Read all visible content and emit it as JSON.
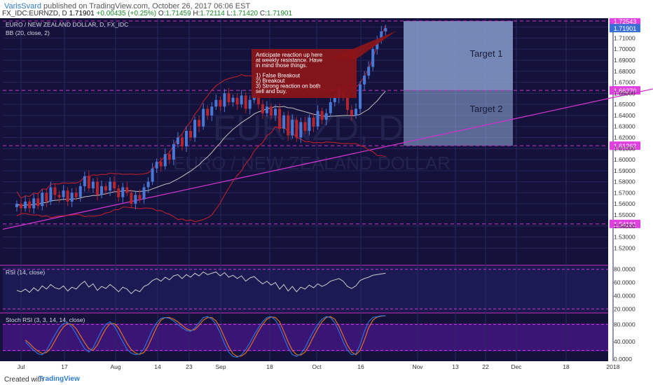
{
  "header": {
    "author": "VarisSvard",
    "published": "published on TradingView.com, October 26, 2017 06:06 EST",
    "symbol": "FX_IDC:EURNZD, D",
    "last": "1.71901",
    "change": "+0.00435 (+0.25%)",
    "open_label": "O:",
    "open": "1.71459",
    "high_label": "H:",
    "high": "1.72114",
    "low_label": "L:",
    "low": "1.71420",
    "close_label": "C:",
    "close": "1.71901"
  },
  "footer": {
    "created": "Created with",
    "brand": "TradingView"
  },
  "colors": {
    "background": "#14123a",
    "up": "#4a78d6",
    "down": "#b8242c",
    "bb": "#c8202a",
    "basis": "#bfbfbf",
    "trendline": "#cc33cc",
    "level": "#cc33cc",
    "rsi": "#cccccc",
    "stoch_k": "#2e6fd6",
    "stoch_d": "#e07020",
    "annotation": "#8c1519",
    "target": "#8fa8d8"
  },
  "chart_data": [
    {
      "type": "candlestick",
      "title": "EURO / NEW ZEALAND DOLLAR, D, FX_IDC",
      "watermark_symbol": "EURNZD, D",
      "watermark_name": "EURO / NEW ZEALAND DOLLAR",
      "indicator": "BB (20, close, 2)",
      "ylim": [
        1.505,
        1.728
      ],
      "yticks": [
        "1.52000",
        "1.53000",
        "1.54000",
        "1.55000",
        "1.56000",
        "1.57000",
        "1.58000",
        "1.59000",
        "1.60000",
        "1.61000",
        "1.62000",
        "1.63000",
        "1.64000",
        "1.65000",
        "1.66000",
        "1.67000",
        "1.68000",
        "1.69000",
        "1.70000",
        "1.71000",
        "1.72000"
      ],
      "xticks": [
        "Jul",
        "17",
        "Aug",
        "14",
        "23",
        "Sep",
        "18",
        "Oct",
        "16",
        "Nov",
        "13",
        "22",
        "Dec",
        "18",
        "2018"
      ],
      "levels": [
        {
          "label": "1.72543",
          "value": 1.72543
        },
        {
          "label": "1.66270",
          "value": 1.6627
        },
        {
          "label": "1.61262",
          "value": 1.61262
        },
        {
          "label": "1.54181",
          "value": 1.54181
        }
      ],
      "last_price": "1.71901",
      "candles_close": [
        1.56,
        1.556,
        1.562,
        1.556,
        1.565,
        1.558,
        1.57,
        1.562,
        1.575,
        1.568,
        1.566,
        1.572,
        1.562,
        1.57,
        1.566,
        1.576,
        1.585,
        1.574,
        1.58,
        1.568,
        1.576,
        1.572,
        1.58,
        1.574,
        1.566,
        1.575,
        1.57,
        1.56,
        1.568,
        1.564,
        1.575,
        1.58,
        1.592,
        1.598,
        1.594,
        1.605,
        1.6,
        1.614,
        1.62,
        1.612,
        1.626,
        1.62,
        1.636,
        1.63,
        1.646,
        1.64,
        1.648,
        1.654,
        1.648,
        1.66,
        1.652,
        1.656,
        1.65,
        1.658,
        1.646,
        1.654,
        1.658,
        1.65,
        1.642,
        1.648,
        1.64,
        1.646,
        1.628,
        1.64,
        1.622,
        1.636,
        1.62,
        1.634,
        1.626,
        1.638,
        1.63,
        1.644,
        1.636,
        1.642,
        1.652,
        1.656,
        1.662,
        1.656,
        1.645,
        1.64,
        1.646,
        1.668,
        1.676,
        1.684,
        1.7,
        1.708,
        1.716,
        1.719
      ],
      "annotation": "Anticipate reaction up here at weekly resistance. Have in mind those things.\n\n1) False Breakout\n2) Breakout\n3) Strong reaction on both sell and buy.",
      "targets": [
        "Target 1",
        "Target 2"
      ]
    },
    {
      "type": "line",
      "indicator": "RSI (14, close)",
      "ylim": [
        15,
        85
      ],
      "yticks": [
        "80.0000",
        "60.0000",
        "40.0000",
        "20.0000"
      ],
      "values": [
        48,
        46,
        50,
        45,
        52,
        47,
        55,
        50,
        57,
        52,
        50,
        55,
        47,
        53,
        50,
        57,
        62,
        53,
        58,
        48,
        54,
        51,
        57,
        52,
        46,
        53,
        50,
        43,
        49,
        46,
        54,
        57,
        63,
        66,
        62,
        68,
        64,
        70,
        72,
        66,
        72,
        68,
        74,
        70,
        76,
        72,
        74,
        76,
        70,
        75,
        68,
        71,
        66,
        70,
        62,
        67,
        69,
        63,
        58,
        62,
        56,
        60,
        50,
        57,
        47,
        54,
        46,
        53,
        50,
        56,
        52,
        58,
        54,
        57,
        62,
        64,
        66,
        62,
        54,
        51,
        55,
        63,
        66,
        68,
        71,
        72,
        73,
        74
      ]
    },
    {
      "type": "line",
      "indicator": "Stoch RSI (3, 3, 14, 14, close)",
      "ylim": [
        -5,
        105
      ],
      "yticks": [
        "80.0000",
        "40.0000",
        "0.0000"
      ],
      "series": [
        {
          "values": [
            40,
            30,
            20,
            12,
            10,
            20,
            38,
            56,
            72,
            82,
            84,
            74,
            58,
            40,
            24,
            16,
            26,
            46,
            66,
            80,
            86,
            76,
            58,
            40,
            22,
            14,
            10,
            12,
            24,
            46,
            68,
            84,
            94,
            96,
            94,
            88,
            80,
            72,
            66,
            64,
            72,
            84,
            96,
            98,
            92,
            80,
            60,
            36,
            16,
            6,
            4,
            10,
            22,
            38,
            56,
            72,
            86,
            96,
            98,
            90,
            74,
            50,
            26,
            10,
            6,
            12,
            26,
            46,
            64,
            80,
            92,
            98,
            96,
            84,
            64,
            40,
            20,
            10,
            12,
            34,
            64,
            86,
            96,
            98,
            100,
            100
          ]
        },
        {
          "values": [
            44,
            36,
            26,
            18,
            13,
            15,
            25,
            42,
            60,
            74,
            82,
            80,
            70,
            54,
            38,
            24,
            20,
            32,
            52,
            70,
            82,
            82,
            72,
            54,
            36,
            22,
            14,
            11,
            15,
            30,
            52,
            74,
            90,
            96,
            96,
            92,
            86,
            78,
            70,
            66,
            68,
            78,
            90,
            96,
            96,
            88,
            72,
            50,
            28,
            12,
            6,
            7,
            14,
            28,
            46,
            64,
            80,
            92,
            97,
            96,
            86,
            64,
            40,
            20,
            10,
            9,
            16,
            32,
            52,
            70,
            86,
            96,
            98,
            92,
            76,
            54,
            32,
            16,
            10,
            20,
            44,
            72,
            90,
            97,
            99,
            100
          ]
        }
      ]
    }
  ]
}
